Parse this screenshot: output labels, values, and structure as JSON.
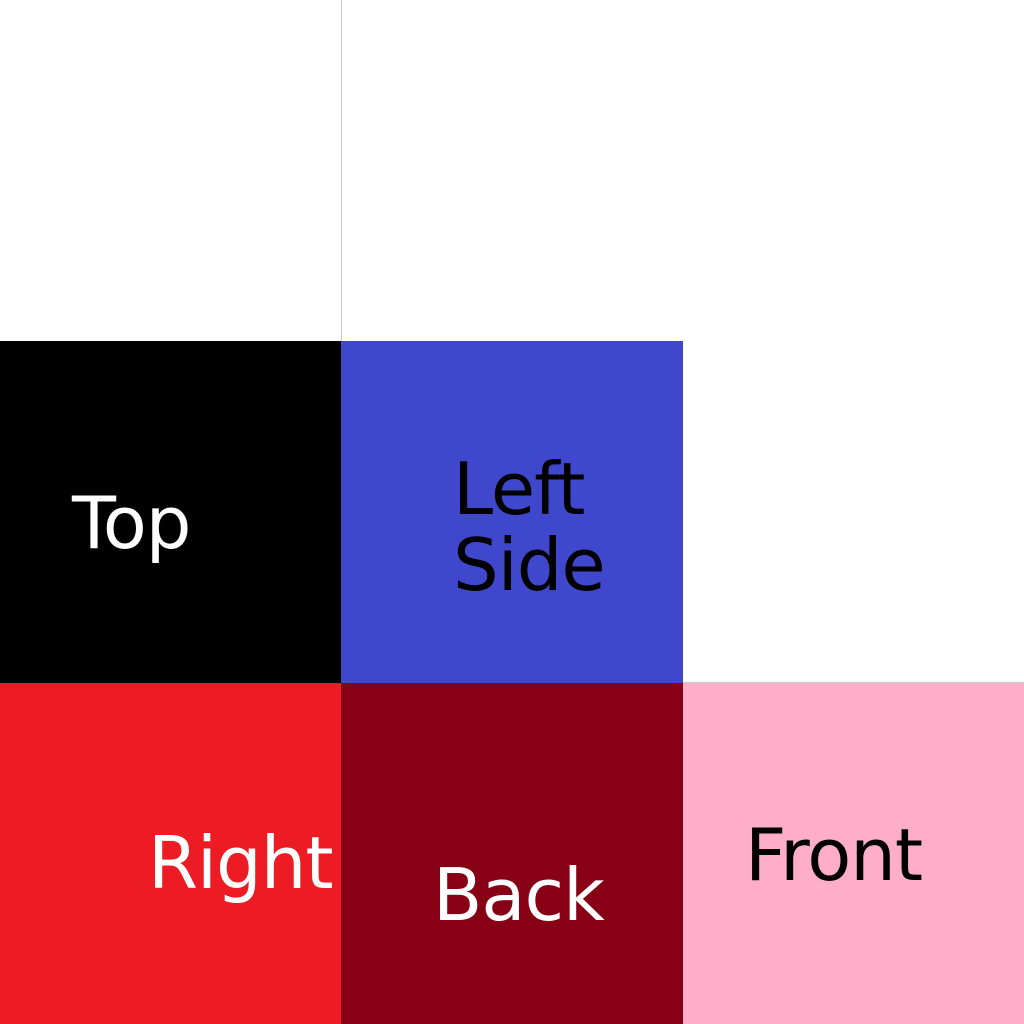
{
  "faces": {
    "top": {
      "label": "Top",
      "fill": "#000000",
      "text_color": "#ffffff"
    },
    "left": {
      "label": "Left\nSide",
      "fill": "#3f48cc",
      "text_color": "#000000"
    },
    "right": {
      "label": "Right",
      "fill": "#ed1c24",
      "text_color": "#ffffff"
    },
    "back": {
      "label": "Back",
      "fill": "#880015",
      "text_color": "#ffffff"
    },
    "front": {
      "label": "Front",
      "fill": "#ffaec9",
      "text_color": "#000000"
    }
  }
}
